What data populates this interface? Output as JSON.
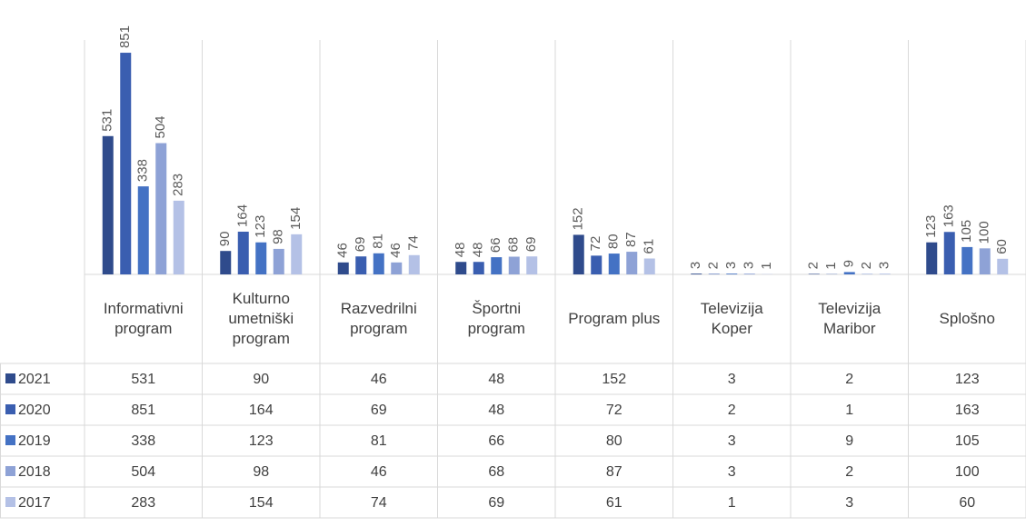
{
  "chart_data": {
    "type": "bar",
    "categories": [
      "Informativni program",
      "Kulturno umetniški program",
      "Razvedrilni program",
      "Športni program",
      "Program plus",
      "Televizija Koper",
      "Televizija Maribor",
      "Splošno"
    ],
    "series": [
      {
        "name": "2021",
        "color": "#2f4b8c",
        "values": [
          531,
          90,
          46,
          48,
          152,
          3,
          2,
          123
        ]
      },
      {
        "name": "2020",
        "color": "#3a5eb0",
        "values": [
          851,
          164,
          69,
          48,
          72,
          2,
          1,
          163
        ]
      },
      {
        "name": "2019",
        "color": "#4472c4",
        "values": [
          338,
          123,
          81,
          66,
          80,
          3,
          9,
          105
        ]
      },
      {
        "name": "2018",
        "color": "#8ea2d6",
        "values": [
          504,
          98,
          46,
          68,
          87,
          3,
          2,
          100
        ]
      },
      {
        "name": "2017",
        "color": "#b4c1e6",
        "values": [
          283,
          154,
          74,
          69,
          61,
          1,
          3,
          60
        ]
      }
    ],
    "ylim": [
      0,
      900
    ],
    "data_table": true
  }
}
